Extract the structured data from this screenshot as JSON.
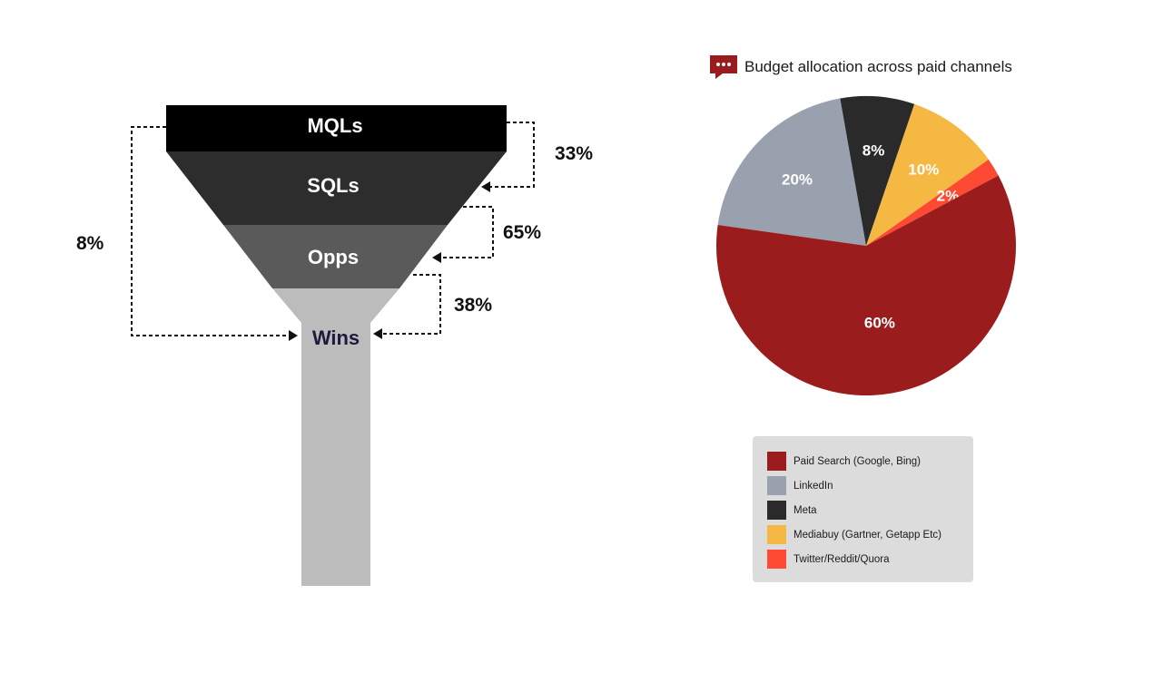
{
  "funnel": {
    "stages": [
      "MQLs",
      "SQLs",
      "Opps",
      "Wins"
    ],
    "conversion_rates": {
      "mql_to_sql": "33%",
      "sql_to_opp": "65%",
      "opp_to_win": "38%",
      "mql_to_win": "8%"
    },
    "colors": {
      "mqls": "#000000",
      "sqls": "#2d2d2d",
      "opps": "#5a5a5a",
      "wins": "#bcbcbc",
      "wins_label": "#1f1a3d"
    }
  },
  "pie": {
    "title": "Budget allocation across paid channels",
    "icon": "chat-bubble-icon",
    "icon_color": "#9b1c1c"
  },
  "chart_data": {
    "type": "pie",
    "title": "Budget allocation across paid channels",
    "slices": [
      {
        "name": "Paid Search (Google, Bing)",
        "value": 60,
        "label": "60%",
        "color": "#9b1c1c"
      },
      {
        "name": "LinkedIn",
        "value": 20,
        "label": "20%",
        "color": "#98a1ad"
      },
      {
        "name": "Meta",
        "value": 8,
        "label": "8%",
        "color": "#2a2a2a"
      },
      {
        "name": "Mediabuy (Gartner, Getapp Etc)",
        "value": 10,
        "label": "10%",
        "color": "#f5b843"
      },
      {
        "name": "Twitter/Reddit/Quora",
        "value": 2,
        "label": "2%",
        "color": "#ff4a33"
      }
    ],
    "legend": {
      "placement": "bottom",
      "items": [
        {
          "label": "Paid Search (Google, Bing)",
          "color": "#9b1c1c"
        },
        {
          "label": "LinkedIn",
          "color": "#98a1ad"
        },
        {
          "label": "Meta",
          "color": "#2a2a2a"
        },
        {
          "label": "Mediabuy (Gartner, Getapp Etc)",
          "color": "#f5b843"
        },
        {
          "label": "Twitter/Reddit/Quora",
          "color": "#ff4a33"
        }
      ]
    }
  }
}
